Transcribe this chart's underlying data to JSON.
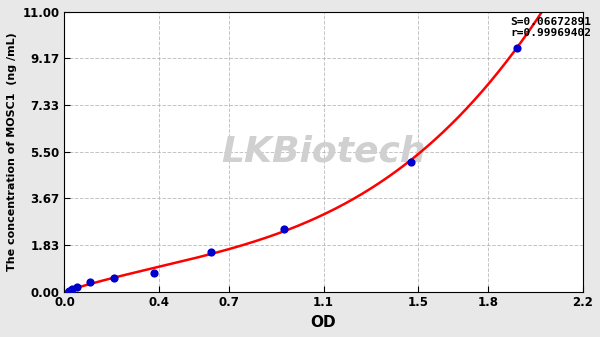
{
  "x_data": [
    0.02,
    0.032,
    0.055,
    0.11,
    0.21,
    0.38,
    0.62,
    0.93,
    1.47,
    1.92
  ],
  "y_data": [
    0.02,
    0.1,
    0.2,
    0.38,
    0.55,
    0.75,
    1.55,
    2.45,
    5.1,
    9.6
  ],
  "xlabel": "OD",
  "ylabel": "The concentration of MOSC1  (ng /mL)",
  "xlim": [
    0.0,
    2.2
  ],
  "ylim": [
    0.0,
    11.0
  ],
  "xtick_vals": [
    0.0,
    0.4,
    0.7,
    1.1,
    1.5,
    1.8,
    2.2
  ],
  "ytick_vals": [
    0.0,
    1.83,
    3.67,
    5.5,
    7.33,
    9.17,
    11.0
  ],
  "ytick_labels": [
    "0.00",
    "1.83",
    "3.67",
    "5.50",
    "7.33",
    "9.17",
    "11.00"
  ],
  "xtick_labels": [
    "0.0",
    "0.4",
    "0.7",
    "1.1",
    "1.5",
    "1.8",
    "2.2"
  ],
  "annotation": "S=0.06672891\nr=0.99969402",
  "dot_color": "#0000cc",
  "line_color": "#ff0000",
  "bg_color": "#e8e8e8",
  "plot_bg_color": "#ffffff",
  "watermark": "LKBiotech",
  "watermark_color": "#d0d0d0",
  "grid_color": "#aaaaaa"
}
